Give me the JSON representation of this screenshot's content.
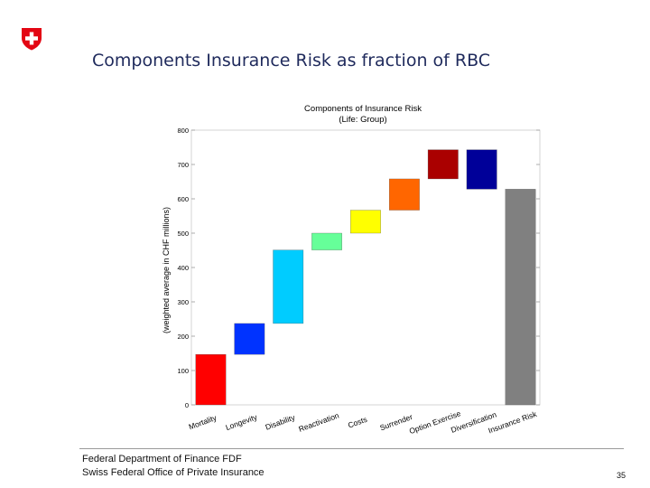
{
  "slide": {
    "title": "Components Insurance Risk as fraction of RBC",
    "footer_line1": "Federal Department of Finance FDF",
    "footer_line2": "Swiss Federal Office of Private Insurance",
    "page_number": "35",
    "logo_icon": "swiss-cross-icon",
    "logo_color": "#e30613"
  },
  "chart_data": {
    "type": "bar",
    "subtype": "waterfall",
    "title": "Components of Insurance Risk",
    "subtitle": "(Life: Group)",
    "xlabel": "",
    "ylabel": "(weighted average in CHF millions)",
    "ylim": [
      0,
      800
    ],
    "yticks": [
      "0",
      "100",
      "200",
      "300",
      "400",
      "500",
      "600",
      "700",
      "800"
    ],
    "grid": false,
    "categories": [
      "Mortality",
      "Longevity",
      "Disability",
      "Reactivation",
      "Costs",
      "Surrender",
      "Option Exercise",
      "Diversification",
      "Insurance Risk"
    ],
    "bars": [
      {
        "category": "Mortality",
        "start": 0,
        "end": 147,
        "color": "#ff0000"
      },
      {
        "category": "Longevity",
        "start": 147,
        "end": 237,
        "color": "#0033ff"
      },
      {
        "category": "Disability",
        "start": 237,
        "end": 451,
        "color": "#00ccff"
      },
      {
        "category": "Reactivation",
        "start": 451,
        "end": 500,
        "color": "#66ff99"
      },
      {
        "category": "Costs",
        "start": 500,
        "end": 567,
        "color": "#ffff00"
      },
      {
        "category": "Surrender",
        "start": 567,
        "end": 658,
        "color": "#ff6600"
      },
      {
        "category": "Option Exercise",
        "start": 658,
        "end": 743,
        "color": "#aa0000"
      },
      {
        "category": "Diversification",
        "start": 628,
        "end": 743,
        "color": "#000099"
      },
      {
        "category": "Insurance Risk",
        "start": 0,
        "end": 628,
        "color": "#808080"
      }
    ]
  }
}
